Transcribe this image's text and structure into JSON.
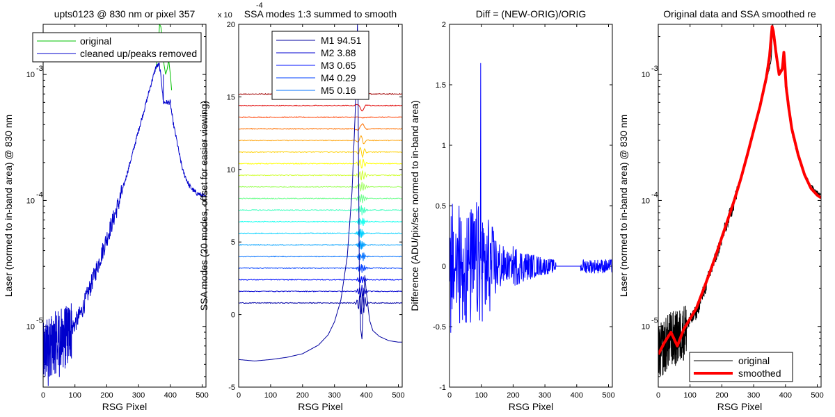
{
  "chart_data": [
    {
      "type": "line",
      "title": "upts0123 @ 830 nm or pixel 357",
      "xlabel": "RSG Pixel",
      "ylabel": "Laser (normed to in-band area) @ 830 nm",
      "xlim": [
        0,
        512
      ],
      "ylim": [
        3.3e-06,
        0.0025
      ],
      "yscale": "log",
      "xticks": [
        0,
        100,
        200,
        300,
        400,
        500
      ],
      "ytick_labels": [
        {
          "value": 1e-05,
          "base": "10",
          "exp": "-5"
        },
        {
          "value": 0.0001,
          "base": "10",
          "exp": "-4"
        },
        {
          "value": 0.001,
          "base": "10",
          "exp": "-3"
        }
      ],
      "legend": {
        "location": "top",
        "entries": [
          "original",
          "cleaned up/peaks removed"
        ]
      },
      "series": [
        {
          "name": "original",
          "color": "#00c000",
          "x": [
            355,
            362,
            366,
            370,
            375,
            380,
            385,
            390,
            395,
            400,
            404
          ],
          "y": [
            0.0011,
            0.0016,
            0.0025,
            0.0024,
            0.0019,
            0.0012,
            0.001,
            0.0011,
            0.0013,
            0.001,
            0.00075
          ]
        },
        {
          "name": "cleaned up/peaks removed",
          "color": "#0000cc",
          "x": [
            0,
            20,
            40,
            60,
            80,
            100,
            120,
            140,
            160,
            180,
            200,
            220,
            240,
            260,
            280,
            300,
            320,
            340,
            355,
            365,
            372,
            378,
            380,
            390,
            400,
            405,
            410,
            420,
            430,
            440,
            460,
            480,
            500,
            512
          ],
          "y": [
            6e-06,
            7e-06,
            7.5e-06,
            8e-06,
            9e-06,
            1.05e-05,
            1.3e-05,
            1.8e-05,
            2.5e-05,
            3.5e-05,
            5e-05,
            7e-05,
            0.0001,
            0.00015,
            0.00023,
            0.00036,
            0.00055,
            0.00085,
            0.00115,
            0.0012,
            0.0009,
            0.0006,
            0.0006,
            0.0006,
            0.0006,
            0.00048,
            0.0004,
            0.0003,
            0.00022,
            0.00017,
            0.00013,
            0.000115,
            0.00011,
            0.000105
          ]
        }
      ]
    },
    {
      "type": "line",
      "title": "SSA modes 1:3 summed to smooth",
      "xlabel": "RSG Pixel",
      "ylabel": "SSA modes (20 modes, offset for easier viewing)",
      "xlim": [
        0,
        512
      ],
      "ylim": [
        -5,
        20
      ],
      "y_multiplier": {
        "base": "x 10",
        "exp": "-4"
      },
      "xticks": [
        0,
        100,
        200,
        300,
        400,
        500
      ],
      "yticks": [
        -5,
        0,
        5,
        10,
        15,
        20
      ],
      "modes": {
        "count": 20,
        "baseline_start": 0.8,
        "offset_step": 0.8,
        "wiggle_center_x": 385,
        "colors": [
          "#000080",
          "#0000a8",
          "#0000d0",
          "#0010ff",
          "#0040ff",
          "#0070ff",
          "#00a0ff",
          "#00d0ff",
          "#10ffef",
          "#40ffbf",
          "#70ff8f",
          "#a0ff60",
          "#d0ff30",
          "#ffff00",
          "#ffd000",
          "#ffa000",
          "#ff7000",
          "#ff4000",
          "#e00000",
          "#a00000"
        ]
      },
      "mode1_curve": {
        "color": "#0000a0",
        "x": [
          0,
          50,
          100,
          150,
          200,
          250,
          280,
          300,
          320,
          340,
          355,
          365,
          372,
          378,
          382,
          386,
          390,
          395,
          400,
          410,
          420,
          440,
          470,
          500,
          512
        ],
        "y": [
          -3.1,
          -3.2,
          -3.1,
          -2.95,
          -2.7,
          -2.1,
          -1.4,
          -0.5,
          1.0,
          4.0,
          8.5,
          14.0,
          20.0,
          2.5,
          -1.0,
          -1.7,
          0.5,
          2.7,
          1.5,
          -0.4,
          -1.1,
          -1.5,
          -1.8,
          -1.9,
          -1.9
        ]
      },
      "legend": {
        "location": "top",
        "entries": [
          "M1 94.51",
          "M2 3.88",
          "M3 0.65",
          "M4 0.29",
          "M5 0.16"
        ],
        "colors": [
          "#0000a0",
          "#0000d0",
          "#0010ff",
          "#0040ff",
          "#0070ff"
        ]
      }
    },
    {
      "type": "line",
      "title": "Diff = (NEW-ORIG)/ORIG",
      "xlabel": "RSG Pixel",
      "ylabel": "Difference (ADU/pix/sec normed to in-band area)",
      "xlim": [
        0,
        512
      ],
      "ylim": [
        -1,
        2
      ],
      "xticks": [
        0,
        100,
        200,
        300,
        400,
        500
      ],
      "yticks": [
        -1,
        -0.5,
        0,
        0.5,
        1,
        1.5,
        2
      ],
      "ytick_labels": [
        "-1",
        "-0.5",
        "0",
        "0.5",
        "1",
        "1.5",
        "2"
      ],
      "noise": {
        "color": "#0000ff",
        "peak_x": 98,
        "peak_y": 1.68,
        "min_y": -0.55,
        "flat_segment": [
          335,
          412
        ]
      }
    },
    {
      "type": "line",
      "title": "Original data and SSA smoothed re",
      "xlabel": "RSG Pixel",
      "ylabel": "Laser (normed to in-band area) @ 830 nm",
      "xlim": [
        0,
        512
      ],
      "ylim": [
        3.3e-06,
        0.0025
      ],
      "yscale": "log",
      "xticks": [
        0,
        100,
        200,
        300,
        400,
        500
      ],
      "ytick_labels": [
        {
          "value": 1e-05,
          "base": "10",
          "exp": "-5"
        },
        {
          "value": 0.0001,
          "base": "10",
          "exp": "-4"
        },
        {
          "value": 0.001,
          "base": "10",
          "exp": "-3"
        }
      ],
      "legend": {
        "location": "bottom",
        "entries": [
          "original",
          "smoothed"
        ]
      },
      "series": [
        {
          "name": "original",
          "color": "#000000",
          "x": [
            0,
            20,
            40,
            60,
            80,
            100,
            120,
            140,
            160,
            180,
            200,
            220,
            240,
            260,
            280,
            300,
            320,
            340,
            355,
            360,
            372,
            380,
            390,
            395,
            400,
            410,
            420,
            440,
            460,
            480,
            500,
            512
          ],
          "y": [
            6e-06,
            7e-06,
            8e-06,
            8e-06,
            9e-06,
            1.1e-05,
            1.3e-05,
            1.8e-05,
            2.5e-05,
            3.5e-05,
            5e-05,
            7e-05,
            0.0001,
            0.00015,
            0.00023,
            0.00036,
            0.00055,
            0.0009,
            0.0013,
            0.0025,
            0.0014,
            0.001,
            0.0012,
            0.0014,
            0.0011,
            0.00055,
            0.00035,
            0.00022,
            0.00016,
            0.00013,
            0.000115,
            0.00011
          ]
        },
        {
          "name": "smoothed",
          "color": "#ff0000",
          "x": [
            0,
            20,
            40,
            60,
            80,
            100,
            120,
            140,
            160,
            180,
            200,
            220,
            240,
            260,
            280,
            300,
            320,
            340,
            350,
            358,
            362,
            370,
            380,
            390,
            395,
            398,
            402,
            410,
            420,
            440,
            460,
            480,
            500,
            512
          ],
          "y": [
            6e-06,
            7.5e-06,
            9e-06,
            7e-06,
            9.5e-06,
            1.15e-05,
            1.4e-05,
            1.9e-05,
            2.6e-05,
            3.6e-05,
            5.1e-05,
            7.2e-05,
            0.000102,
            0.00015,
            0.00023,
            0.00036,
            0.00056,
            0.00095,
            0.0014,
            0.0024,
            0.0022,
            0.0015,
            0.001,
            0.0011,
            0.0015,
            0.0012,
            0.0008,
            0.00055,
            0.00037,
            0.00023,
            0.00016,
            0.000125,
            0.00011,
            0.000105
          ]
        }
      ]
    }
  ]
}
